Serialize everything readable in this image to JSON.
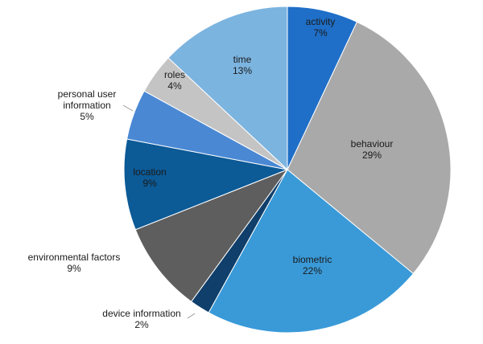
{
  "chart_data": {
    "type": "pie",
    "title": "",
    "start_angle_deg": 0,
    "direction": "clockwise",
    "legend": "none",
    "slices": [
      {
        "label": "activity",
        "value": 7,
        "display": "7%",
        "color": "#1f6fc8",
        "label_color": "#1a1a1a"
      },
      {
        "label": "behaviour",
        "value": 29,
        "display": "29%",
        "color": "#a9a9a9",
        "label_color": "#1a1a1a"
      },
      {
        "label": "biometric",
        "value": 22,
        "display": "22%",
        "color": "#3a9ad8",
        "label_color": "#1a1a1a"
      },
      {
        "label": "device information",
        "value": 2,
        "display": "2%",
        "color": "#0f3f6a",
        "label_color": "#1a1a1a"
      },
      {
        "label": "environmental factors",
        "value": 9,
        "display": "9%",
        "color": "#5e5e5e",
        "label_color": "#1a1a1a"
      },
      {
        "label": "location",
        "value": 9,
        "display": "9%",
        "color": "#0c5a96",
        "label_color": "#1a1a1a"
      },
      {
        "label": "personal user information",
        "value": 5,
        "display": "5%",
        "color": "#4a88d4",
        "label_color": "#1a1a1a"
      },
      {
        "label": "roles",
        "value": 4,
        "display": "4%",
        "color": "#c4c4c4",
        "label_color": "#1a1a1a"
      },
      {
        "label": "time",
        "value": 13,
        "display": "13%",
        "color": "#7cb4e0",
        "label_color": "#1a1a1a"
      }
    ]
  }
}
